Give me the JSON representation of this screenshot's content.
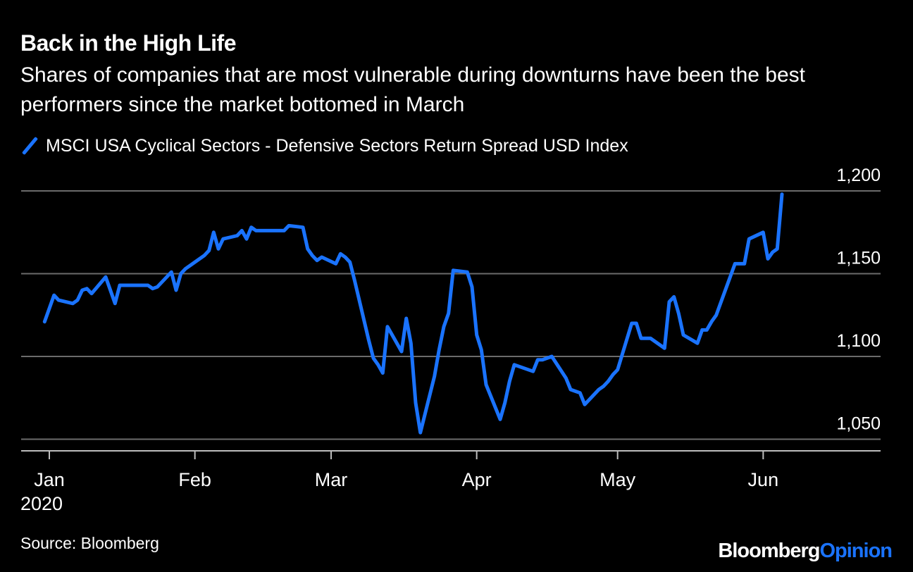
{
  "header": {
    "title": "Back in the High Life",
    "subtitle": "Shares of companies that are most vulnerable during downturns have been the best performers since the market bottomed in March"
  },
  "legend": {
    "label": "MSCI USA Cyclical Sectors - Defensive Sectors Return Spread USD Index",
    "color": "#1a73ff"
  },
  "footer": {
    "year": "2020",
    "source": "Source: Bloomberg",
    "brand_primary": "Bloomberg",
    "brand_accent": "Opinion"
  },
  "chart_data": {
    "type": "line",
    "title": "Back in the High Life",
    "subtitle": "Shares of companies that are most vulnerable during downturns have been the best performers since the market bottomed in March",
    "xlabel": "",
    "ylabel": "",
    "ylim": [
      1043,
      1200
    ],
    "yticks": [
      1050,
      1100,
      1150,
      1200
    ],
    "ytick_labels": [
      "1,050",
      "1,100",
      "1,150",
      "1,200"
    ],
    "xticks": [
      "2020-01-01",
      "2020-02-01",
      "2020-03-01",
      "2020-04-01",
      "2020-05-01",
      "2020-06-01"
    ],
    "xtick_labels": [
      "Jan",
      "Feb",
      "Mar",
      "Apr",
      "May",
      "Jun"
    ],
    "xlim": [
      "2019-12-26",
      "2020-06-26"
    ],
    "grid": true,
    "legend_position": "top-left",
    "series": [
      {
        "name": "MSCI USA Cyclical Sectors - Defensive Sectors Return Spread USD Index",
        "color": "#1a73ff",
        "x": [
          "2019-12-31",
          "2020-01-02",
          "2020-01-03",
          "2020-01-06",
          "2020-01-07",
          "2020-01-08",
          "2020-01-09",
          "2020-01-10",
          "2020-01-13",
          "2020-01-14",
          "2020-01-15",
          "2020-01-16",
          "2020-01-17",
          "2020-01-21",
          "2020-01-22",
          "2020-01-23",
          "2020-01-24",
          "2020-01-27",
          "2020-01-28",
          "2020-01-29",
          "2020-01-30",
          "2020-01-31",
          "2020-02-03",
          "2020-02-04",
          "2020-02-05",
          "2020-02-06",
          "2020-02-07",
          "2020-02-10",
          "2020-02-11",
          "2020-02-12",
          "2020-02-13",
          "2020-02-14",
          "2020-02-18",
          "2020-02-19",
          "2020-02-20",
          "2020-02-21",
          "2020-02-24",
          "2020-02-25",
          "2020-02-26",
          "2020-02-27",
          "2020-02-28",
          "2020-03-02",
          "2020-03-03",
          "2020-03-04",
          "2020-03-05",
          "2020-03-06",
          "2020-03-09",
          "2020-03-10",
          "2020-03-11",
          "2020-03-12",
          "2020-03-13",
          "2020-03-16",
          "2020-03-17",
          "2020-03-18",
          "2020-03-19",
          "2020-03-20",
          "2020-03-23",
          "2020-03-24",
          "2020-03-25",
          "2020-03-26",
          "2020-03-27",
          "2020-03-30",
          "2020-03-31",
          "2020-04-01",
          "2020-04-02",
          "2020-04-03",
          "2020-04-06",
          "2020-04-07",
          "2020-04-08",
          "2020-04-09",
          "2020-04-13",
          "2020-04-14",
          "2020-04-15",
          "2020-04-16",
          "2020-04-17",
          "2020-04-20",
          "2020-04-21",
          "2020-04-22",
          "2020-04-23",
          "2020-04-24",
          "2020-04-27",
          "2020-04-28",
          "2020-04-29",
          "2020-04-30",
          "2020-05-01",
          "2020-05-04",
          "2020-05-05",
          "2020-05-06",
          "2020-05-07",
          "2020-05-08",
          "2020-05-11",
          "2020-05-12",
          "2020-05-13",
          "2020-05-14",
          "2020-05-15",
          "2020-05-18",
          "2020-05-19",
          "2020-05-20",
          "2020-05-21",
          "2020-05-22",
          "2020-05-26",
          "2020-05-27",
          "2020-05-28",
          "2020-05-29",
          "2020-06-01",
          "2020-06-02",
          "2020-06-03",
          "2020-06-04",
          "2020-06-05"
        ],
        "values": [
          1121,
          1137,
          1134,
          1132,
          1134,
          1140,
          1141,
          1138,
          1148,
          1140,
          1132,
          1143,
          1143,
          1143,
          1143,
          1141,
          1142,
          1151,
          1140,
          1150,
          1153,
          1155,
          1161,
          1164,
          1175,
          1165,
          1171,
          1173,
          1176,
          1171,
          1178,
          1176,
          1176,
          1176,
          1176,
          1179,
          1178,
          1165,
          1161,
          1158,
          1160,
          1156,
          1162,
          1160,
          1157,
          1146,
          1110,
          1099,
          1095,
          1090,
          1118,
          1103,
          1123,
          1108,
          1072,
          1054,
          1088,
          1104,
          1118,
          1126,
          1152,
          1151,
          1142,
          1113,
          1104,
          1083,
          1062,
          1072,
          1085,
          1095,
          1091,
          1098,
          1098,
          1099,
          1100,
          1087,
          1080,
          1079,
          1078,
          1071,
          1080,
          1082,
          1085,
          1089,
          1092,
          1120,
          1120,
          1111,
          1111,
          1111,
          1105,
          1133,
          1136,
          1126,
          1113,
          1108,
          1116,
          1116,
          1121,
          1125,
          1156,
          1156,
          1156,
          1171,
          1175,
          1159,
          1163,
          1165,
          1198
        ]
      }
    ]
  }
}
